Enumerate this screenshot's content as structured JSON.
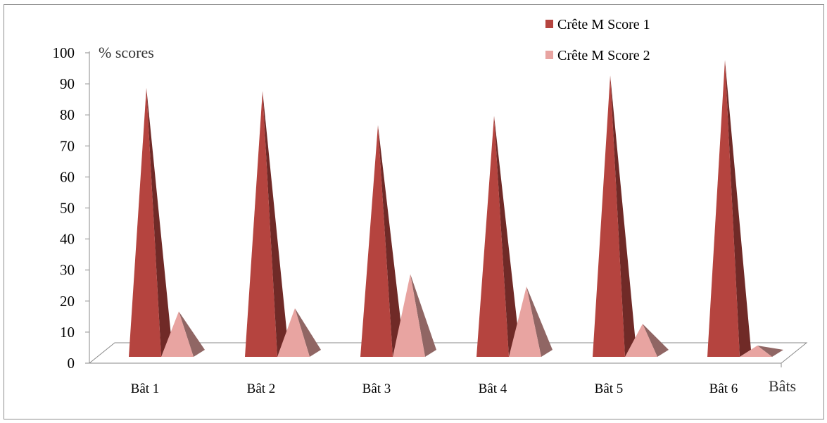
{
  "chart_data": {
    "type": "bar",
    "bar_shape": "pyramid-3d",
    "categories": [
      "Bât 1",
      "Bât 2",
      "Bât 3",
      "Bât 4",
      "Bât 5",
      "Bât 6"
    ],
    "series": [
      {
        "name": "Crête M Score 1",
        "color": "#b5443f",
        "values": [
          88,
          87,
          76,
          79,
          92,
          97
        ]
      },
      {
        "name": "Crête M Score 2",
        "color": "#e8a4a1",
        "values": [
          16,
          17,
          28,
          24,
          12,
          5
        ]
      }
    ],
    "xlabel": "Bâts",
    "ylabel": "% scores",
    "ylim": [
      0,
      100
    ],
    "yticks": [
      0,
      10,
      20,
      30,
      40,
      50,
      60,
      70,
      80,
      90,
      100
    ],
    "grid": false,
    "legend_position": "top-right"
  }
}
